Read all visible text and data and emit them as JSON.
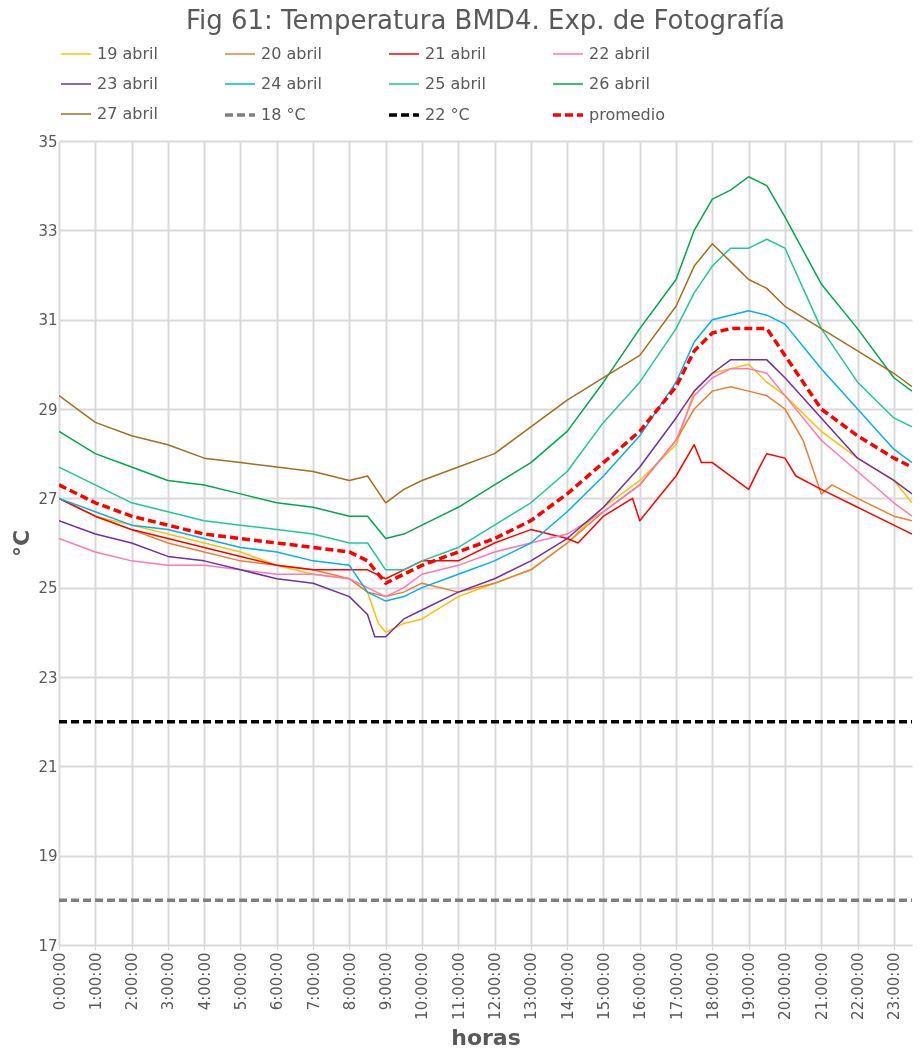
{
  "chart_data": {
    "type": "line",
    "title": "Fig 61: Temperatura BMD4. Exp. de Fotografía",
    "xlabel": "horas",
    "ylabel": "°C",
    "xlim": [
      0,
      23.5
    ],
    "ylim": [
      17,
      35
    ],
    "yticks": [
      17,
      19,
      21,
      23,
      25,
      27,
      29,
      31,
      33,
      35
    ],
    "xticks": [
      {
        "value": 0,
        "label": "0:00:00"
      },
      {
        "value": 1,
        "label": "1:00:00"
      },
      {
        "value": 2,
        "label": "2:00:00"
      },
      {
        "value": 3,
        "label": "3:00:00"
      },
      {
        "value": 4,
        "label": "4:00:00"
      },
      {
        "value": 5,
        "label": "5:00:00"
      },
      {
        "value": 6,
        "label": "6:00:00"
      },
      {
        "value": 7,
        "label": "7:00:00"
      },
      {
        "value": 8,
        "label": "8:00:00"
      },
      {
        "value": 9,
        "label": "9:00:00"
      },
      {
        "value": 10,
        "label": "10:00:00"
      },
      {
        "value": 11,
        "label": "11:00:00"
      },
      {
        "value": 12,
        "label": "12:00:00"
      },
      {
        "value": 13,
        "label": "13:00:00"
      },
      {
        "value": 14,
        "label": "14:00:00"
      },
      {
        "value": 15,
        "label": "15:00:00"
      },
      {
        "value": 16,
        "label": "16:00:00"
      },
      {
        "value": 17,
        "label": "17:00:00"
      },
      {
        "value": 18,
        "label": "18:00:00"
      },
      {
        "value": 19,
        "label": "19:00:00"
      },
      {
        "value": 20,
        "label": "20:00:00"
      },
      {
        "value": 21,
        "label": "21:00:00"
      },
      {
        "value": 22,
        "label": "22:00:00"
      },
      {
        "value": 23,
        "label": "23:00:00"
      }
    ],
    "grid": true,
    "legend": "top",
    "marker": "none",
    "series": [
      {
        "name": "19 abril",
        "color": "#ffc000",
        "line_style": "solid",
        "x": [
          0,
          1,
          2,
          3,
          4,
          5,
          6,
          7,
          8,
          8.5,
          8.8,
          9,
          9.5,
          10,
          11,
          12,
          13,
          14,
          15,
          16,
          17,
          17.5,
          18,
          18.5,
          19,
          19.5,
          20,
          21,
          22,
          23,
          23.5
        ],
        "values": [
          27.0,
          26.6,
          26.4,
          26.2,
          26.0,
          25.8,
          25.5,
          25.3,
          25.2,
          24.9,
          24.2,
          24.0,
          24.2,
          24.3,
          24.8,
          25.1,
          25.4,
          26.0,
          26.8,
          27.4,
          28.2,
          29.4,
          29.8,
          29.9,
          30.0,
          29.6,
          29.3,
          28.5,
          27.9,
          27.4,
          26.9
        ]
      },
      {
        "name": "20 abril",
        "color": "#ed7d31",
        "line_style": "solid",
        "x": [
          0,
          1,
          2,
          3,
          4,
          5,
          6,
          7,
          8,
          8.5,
          9,
          9.5,
          10,
          11,
          12,
          13,
          14,
          15,
          16,
          17,
          17.5,
          18,
          18.5,
          19,
          19.5,
          20,
          20.5,
          21,
          21.3,
          22,
          23,
          23.5
        ],
        "values": [
          27.0,
          26.6,
          26.3,
          26.0,
          25.8,
          25.6,
          25.5,
          25.4,
          25.2,
          24.9,
          24.8,
          24.9,
          25.1,
          24.9,
          25.1,
          25.4,
          26.0,
          26.7,
          27.3,
          28.3,
          29.0,
          29.4,
          29.5,
          29.4,
          29.3,
          29.0,
          28.3,
          27.1,
          27.3,
          27.0,
          26.6,
          26.5
        ]
      },
      {
        "name": "21 abril",
        "color": "#ff0000",
        "line_style": "solid",
        "x": [
          0,
          1,
          2,
          3,
          4,
          5,
          6,
          7,
          8,
          8.5,
          9,
          9.5,
          10,
          11,
          12,
          13,
          14,
          14.3,
          15,
          15.8,
          16,
          16.5,
          17,
          17.5,
          17.7,
          18,
          19,
          19.3,
          19.5,
          20,
          20.3,
          21,
          22,
          23,
          23.5
        ],
        "values": [
          27.0,
          26.6,
          26.3,
          26.1,
          25.9,
          25.7,
          25.5,
          25.4,
          25.4,
          25.4,
          25.2,
          25.4,
          25.6,
          25.6,
          26.0,
          26.3,
          26.1,
          26.0,
          26.6,
          27.0,
          26.5,
          27.0,
          27.5,
          28.2,
          27.8,
          27.8,
          27.2,
          27.7,
          28.0,
          27.9,
          27.5,
          27.2,
          26.8,
          26.4,
          26.2
        ]
      },
      {
        "name": "22 abril",
        "color": "#ff77b4",
        "line_style": "solid",
        "x": [
          0,
          1,
          2,
          3,
          4,
          5,
          6,
          7,
          8,
          8.5,
          9,
          9.5,
          10,
          11,
          12,
          13,
          14,
          15,
          16,
          17,
          17.5,
          18,
          18.5,
          19,
          19.5,
          20,
          21,
          22,
          23,
          23.5
        ],
        "values": [
          26.1,
          25.8,
          25.6,
          25.5,
          25.5,
          25.4,
          25.3,
          25.3,
          25.2,
          25.0,
          24.8,
          25.0,
          25.3,
          25.5,
          25.8,
          26.0,
          26.2,
          26.7,
          27.3,
          28.3,
          29.3,
          29.7,
          29.9,
          29.9,
          29.8,
          29.3,
          28.3,
          27.6,
          26.9,
          26.6
        ]
      },
      {
        "name": "23 abril",
        "color": "#7030a0",
        "line_style": "solid",
        "x": [
          0,
          1,
          2,
          3,
          4,
          5,
          6,
          7,
          8,
          8.5,
          8.7,
          9,
          9.5,
          10,
          11,
          12,
          13,
          14,
          15,
          16,
          17,
          17.5,
          18,
          18.5,
          19,
          19.5,
          20,
          21,
          22,
          23,
          23.5
        ],
        "values": [
          26.5,
          26.2,
          26.0,
          25.7,
          25.6,
          25.4,
          25.2,
          25.1,
          24.8,
          24.4,
          23.9,
          23.9,
          24.3,
          24.5,
          24.9,
          25.2,
          25.6,
          26.1,
          26.8,
          27.7,
          28.8,
          29.4,
          29.8,
          30.1,
          30.1,
          30.1,
          29.7,
          28.8,
          27.9,
          27.4,
          27.1
        ]
      },
      {
        "name": "24 abril",
        "color": "#00b0f0",
        "line_style": "solid",
        "x": [
          0,
          1,
          2,
          3,
          4,
          5,
          6,
          7,
          8,
          8.5,
          9,
          9.5,
          10,
          11,
          12,
          13,
          14,
          15,
          16,
          17,
          17.5,
          18,
          18.5,
          19,
          19.5,
          20,
          21,
          22,
          23,
          23.5
        ],
        "values": [
          27.0,
          26.7,
          26.4,
          26.3,
          26.1,
          25.9,
          25.8,
          25.6,
          25.5,
          24.9,
          24.7,
          24.8,
          25.0,
          25.3,
          25.6,
          26.0,
          26.7,
          27.5,
          28.4,
          29.6,
          30.5,
          31.0,
          31.1,
          31.2,
          31.1,
          30.9,
          29.9,
          29.0,
          28.1,
          27.8
        ]
      },
      {
        "name": "25 abril",
        "color": "#1fc79a",
        "line_style": "solid",
        "x": [
          0,
          1,
          2,
          3,
          4,
          5,
          6,
          7,
          8,
          8.5,
          9,
          9.5,
          10,
          11,
          12,
          13,
          14,
          15,
          16,
          17,
          17.5,
          18,
          18.5,
          19,
          19.5,
          20,
          21,
          22,
          23,
          23.5
        ],
        "values": [
          27.7,
          27.3,
          26.9,
          26.7,
          26.5,
          26.4,
          26.3,
          26.2,
          26.0,
          26.0,
          25.4,
          25.4,
          25.6,
          25.9,
          26.4,
          26.9,
          27.6,
          28.7,
          29.6,
          30.8,
          31.6,
          32.2,
          32.6,
          32.6,
          32.8,
          32.6,
          30.8,
          29.6,
          28.8,
          28.6
        ]
      },
      {
        "name": "26 abril",
        "color": "#00a650",
        "line_style": "solid",
        "x": [
          0,
          1,
          2,
          3,
          4,
          5,
          6,
          7,
          8,
          8.5,
          9,
          9.5,
          10,
          11,
          12,
          13,
          14,
          15,
          16,
          17,
          17.5,
          18,
          18.5,
          19,
          19.5,
          20,
          21,
          22,
          23,
          23.5
        ],
        "values": [
          28.5,
          28.0,
          27.7,
          27.4,
          27.3,
          27.1,
          26.9,
          26.8,
          26.6,
          26.6,
          26.1,
          26.2,
          26.4,
          26.8,
          27.3,
          27.8,
          28.5,
          29.6,
          30.8,
          31.9,
          33.0,
          33.7,
          33.9,
          34.2,
          34.0,
          33.3,
          31.8,
          30.8,
          29.7,
          29.4
        ]
      },
      {
        "name": "27 abril",
        "color": "#a0701c",
        "line_style": "solid",
        "x": [
          0,
          1,
          2,
          3,
          4,
          5,
          6,
          7,
          8,
          8.5,
          9,
          9.5,
          10,
          11,
          12,
          13,
          14,
          15,
          16,
          17,
          17.5,
          18,
          18.5,
          19,
          19.5,
          20,
          21,
          22,
          23,
          23.5
        ],
        "values": [
          29.3,
          28.7,
          28.4,
          28.2,
          27.9,
          27.8,
          27.7,
          27.6,
          27.4,
          27.5,
          26.9,
          27.2,
          27.4,
          27.7,
          28.0,
          28.6,
          29.2,
          29.7,
          30.2,
          31.3,
          32.2,
          32.7,
          32.3,
          31.9,
          31.7,
          31.3,
          30.8,
          30.3,
          29.8,
          29.5
        ]
      },
      {
        "name": "18 °C",
        "color": "#7f7f7f",
        "line_style": "dashed",
        "x": [
          0,
          23.5
        ],
        "values": [
          18,
          18
        ]
      },
      {
        "name": "22 °C",
        "color": "#000000",
        "line_style": "dashed",
        "x": [
          0,
          23.5
        ],
        "values": [
          22,
          22
        ]
      },
      {
        "name": "promedio",
        "color": "#ff0000",
        "line_style": "dashed",
        "x": [
          0,
          1,
          2,
          3,
          4,
          5,
          6,
          7,
          8,
          8.5,
          9,
          9.5,
          10,
          11,
          12,
          13,
          14,
          15,
          16,
          17,
          17.5,
          18,
          18.5,
          19,
          19.5,
          20,
          21,
          22,
          23,
          23.5
        ],
        "values": [
          27.3,
          26.9,
          26.6,
          26.4,
          26.2,
          26.1,
          26.0,
          25.9,
          25.8,
          25.6,
          25.1,
          25.3,
          25.5,
          25.8,
          26.1,
          26.5,
          27.1,
          27.8,
          28.5,
          29.5,
          30.3,
          30.7,
          30.8,
          30.8,
          30.8,
          30.2,
          29.0,
          28.4,
          27.9,
          27.7
        ]
      }
    ]
  }
}
